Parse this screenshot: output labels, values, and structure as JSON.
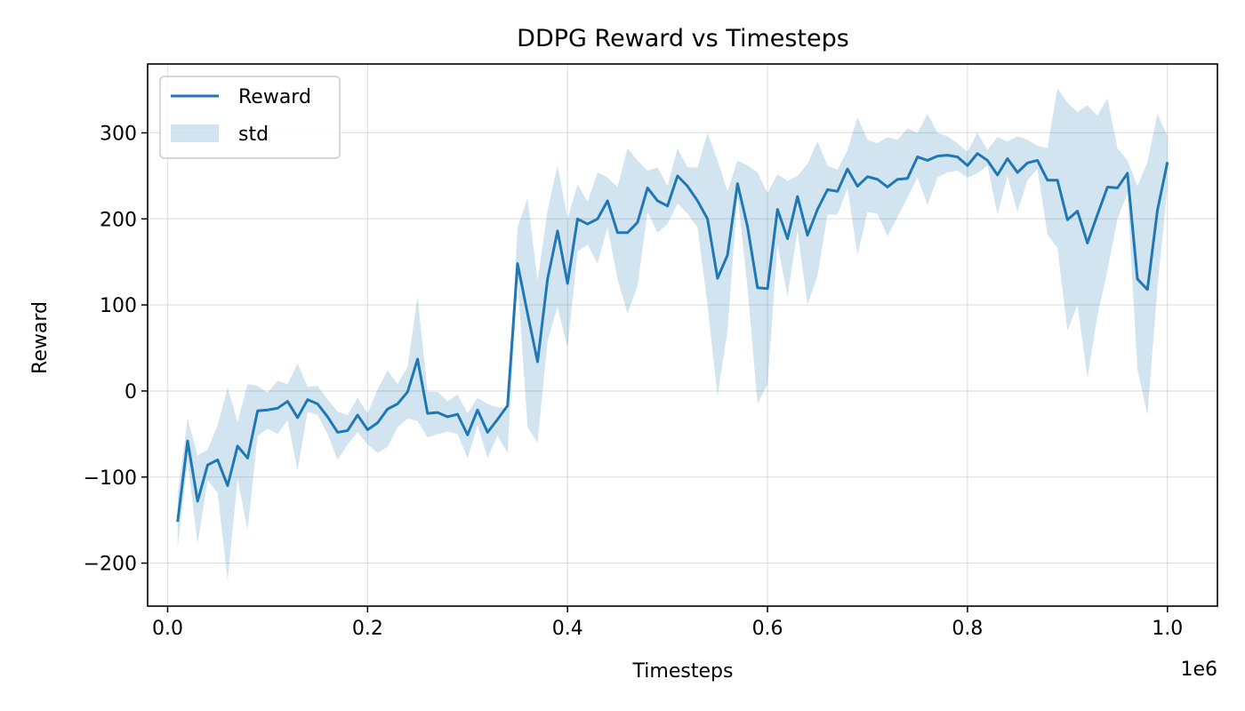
{
  "chart_data": {
    "type": "line",
    "title": "DDPG Reward vs Timesteps",
    "xlabel": "Timesteps",
    "ylabel": "Reward",
    "x_offset_label": "1e6",
    "xlim": [
      -0.02,
      1.05
    ],
    "ylim": [
      -250,
      380
    ],
    "x_ticks": [
      0.0,
      0.2,
      0.4,
      0.6,
      0.8,
      1.0
    ],
    "x_tick_labels": [
      "0.0",
      "0.2",
      "0.4",
      "0.6",
      "0.8",
      "1.0"
    ],
    "y_ticks": [
      -200,
      -100,
      0,
      100,
      200,
      300
    ],
    "y_tick_labels": [
      "−200",
      "−100",
      "0",
      "100",
      "200",
      "300"
    ],
    "grid": true,
    "legend_position": "upper-left",
    "colors": {
      "line": "#1f77b4",
      "band": "#1f77b4"
    },
    "series": [
      {
        "name": "Reward",
        "x": [
          0.01,
          0.02,
          0.03,
          0.04,
          0.05,
          0.06,
          0.07,
          0.08,
          0.09,
          0.1,
          0.11,
          0.12,
          0.13,
          0.14,
          0.15,
          0.16,
          0.17,
          0.18,
          0.19,
          0.2,
          0.21,
          0.22,
          0.23,
          0.24,
          0.25,
          0.26,
          0.27,
          0.28,
          0.29,
          0.3,
          0.31,
          0.32,
          0.33,
          0.34,
          0.35,
          0.36,
          0.37,
          0.38,
          0.39,
          0.4,
          0.41,
          0.42,
          0.43,
          0.44,
          0.45,
          0.46,
          0.47,
          0.48,
          0.49,
          0.5,
          0.51,
          0.52,
          0.53,
          0.54,
          0.55,
          0.56,
          0.57,
          0.58,
          0.59,
          0.6,
          0.61,
          0.62,
          0.63,
          0.64,
          0.65,
          0.66,
          0.67,
          0.68,
          0.69,
          0.7,
          0.71,
          0.72,
          0.73,
          0.74,
          0.75,
          0.76,
          0.77,
          0.78,
          0.79,
          0.8,
          0.81,
          0.82,
          0.83,
          0.84,
          0.85,
          0.86,
          0.87,
          0.88,
          0.89,
          0.9,
          0.91,
          0.92,
          0.93,
          0.94,
          0.95,
          0.96,
          0.97,
          0.98,
          0.99,
          1.0
        ],
        "y": [
          -152,
          -58,
          -128,
          -86,
          -80,
          -110,
          -64,
          -78,
          -23,
          -22,
          -20,
          -12,
          -31,
          -10,
          -15,
          -30,
          -48,
          -46,
          -28,
          -45,
          -37,
          -21,
          -15,
          -1,
          37,
          -26,
          -25,
          -30,
          -27,
          -51,
          -22,
          -48,
          -33,
          -17,
          148,
          90,
          34,
          130,
          186,
          125,
          200,
          194,
          200,
          221,
          184,
          184,
          196,
          236,
          221,
          215,
          250,
          238,
          221,
          200,
          131,
          158,
          241,
          191,
          120,
          119,
          211,
          177,
          226,
          181,
          211,
          234,
          232,
          258,
          238,
          249,
          246,
          237,
          246,
          247,
          272,
          268,
          273,
          274,
          272,
          262,
          276,
          268,
          251,
          270,
          254,
          265,
          268,
          245,
          245,
          199,
          209,
          172,
          205,
          237,
          236,
          253,
          130,
          118,
          210,
          266
        ]
      },
      {
        "name": "std",
        "lower": [
          -182,
          -82,
          -178,
          -104,
          -118,
          -220,
          -102,
          -162,
          -52,
          -44,
          -50,
          -34,
          -92,
          -24,
          -28,
          -50,
          -80,
          -62,
          -48,
          -62,
          -72,
          -65,
          -42,
          -32,
          -35,
          -54,
          -50,
          -47,
          -50,
          -78,
          -40,
          -78,
          -52,
          -72,
          130,
          -42,
          -60,
          58,
          98,
          50,
          162,
          170,
          148,
          190,
          130,
          90,
          122,
          208,
          184,
          194,
          218,
          206,
          190,
          100,
          -6,
          70,
          228,
          120,
          -15,
          8,
          170,
          110,
          186,
          100,
          134,
          205,
          205,
          236,
          158,
          208,
          206,
          180,
          202,
          225,
          248,
          216,
          248,
          254,
          256,
          248,
          253,
          262,
          205,
          250,
          208,
          245,
          258,
          182,
          166,
          70,
          100,
          15,
          88,
          140,
          200,
          230,
          25,
          -28,
          120,
          238
        ],
        "upper": [
          -120,
          -32,
          -75,
          -68,
          -40,
          4,
          -36,
          8,
          6,
          -2,
          12,
          8,
          32,
          5,
          6,
          -10,
          -24,
          -28,
          -8,
          -26,
          2,
          24,
          8,
          28,
          110,
          -1,
          -1,
          -12,
          -4,
          -26,
          -8,
          -15,
          -19,
          -20,
          190,
          224,
          128,
          210,
          262,
          200,
          240,
          220,
          254,
          248,
          237,
          282,
          268,
          256,
          260,
          238,
          282,
          260,
          260,
          300,
          268,
          232,
          268,
          262,
          254,
          230,
          252,
          244,
          250,
          264,
          290,
          262,
          257,
          280,
          318,
          292,
          288,
          295,
          292,
          305,
          300,
          322,
          300,
          296,
          288,
          278,
          300,
          280,
          295,
          290,
          296,
          292,
          285,
          282,
          352,
          335,
          324,
          332,
          320,
          340,
          282,
          268,
          238,
          266,
          322,
          296
        ]
      }
    ]
  }
}
